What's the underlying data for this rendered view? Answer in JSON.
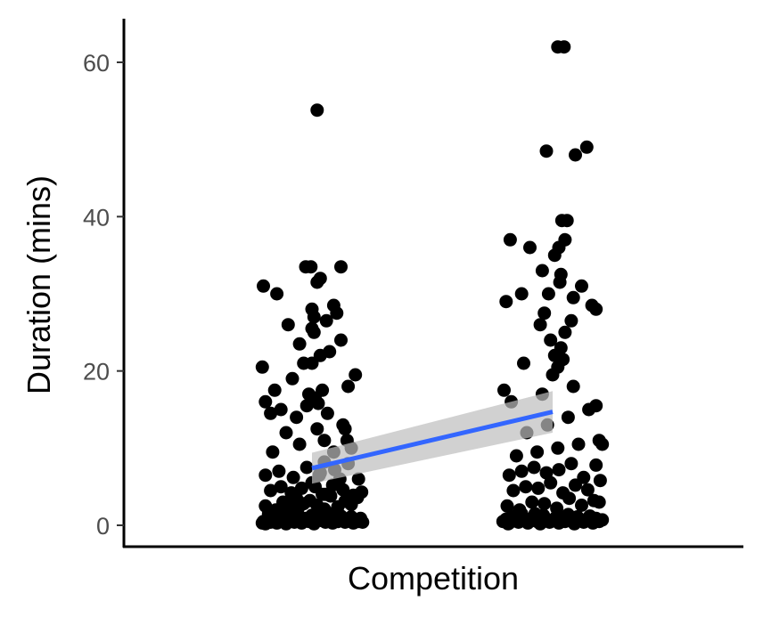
{
  "chart_data": {
    "type": "scatter",
    "title": "",
    "xlabel": "Competition",
    "ylabel": "Duration (mins)",
    "x_range": [
      0,
      1
    ],
    "ylim": [
      -2.5,
      65
    ],
    "yticks": [
      0,
      20,
      40,
      60
    ],
    "grid": false,
    "legend": "none",
    "colors": {
      "points": "#000000",
      "trend": "#3366ff",
      "ribbon": "#bebebe"
    },
    "series": [
      {
        "x": [
          0.02,
          0.03,
          0.05,
          0.07,
          0.08,
          0.1,
          0.12,
          0.14,
          0.16,
          0.18,
          0.2,
          0.23,
          0.25,
          0.27,
          0.3,
          0.33,
          0.36,
          0.4,
          0.44,
          0.47,
          0.5,
          0.52,
          0.55,
          0.58,
          0.6,
          0.63,
          0.66,
          0.68,
          0.7,
          0.72,
          0.75,
          0.78,
          0.8,
          0.82,
          0.85,
          0.88,
          0.9,
          0.92,
          0.95,
          0.97,
          0.99,
          0.05,
          0.15,
          0.22,
          0.28,
          0.35,
          0.42,
          0.48,
          0.55,
          0.62,
          0.68,
          0.75,
          0.82,
          0.88,
          0.94,
          0.1,
          0.2,
          0.3,
          0.4,
          0.5,
          0.6,
          0.7,
          0.8,
          0.9,
          0.98,
          0.05,
          0.18,
          0.32,
          0.45,
          0.58,
          0.72,
          0.85,
          0.95,
          0.12,
          0.38,
          0.62,
          0.88,
          0.25,
          0.55,
          0.8,
          0.35,
          0.65,
          0.45,
          0.56,
          0.2,
          0.53,
          0.47,
          0.6,
          0.31,
          0.85,
          0.92,
          0.02,
          0.5,
          0.58,
          0.67,
          0.38,
          0.78,
          0.27,
          0.64,
          0.52,
          0.74,
          0.52,
          0.5,
          0.71,
          0.03,
          0.55,
          0.58,
          0.78,
          0.16,
          0.44,
          0.05,
          0.82,
          0.84,
          0.49,
          0.55,
          0.5,
          0.62,
          0.71,
          0.77,
          0.1,
          0.14,
          0.33,
          0.38,
          0.53,
          0.57,
          0.63,
          0.68,
          0.42
        ],
        "y": [
          0.3,
          0.5,
          0.2,
          0.8,
          1.5,
          0.4,
          0.6,
          1.2,
          0.3,
          0.9,
          1.8,
          0.5,
          0.2,
          1.1,
          0.7,
          0.4,
          1.6,
          0.3,
          0.9,
          0.5,
          1.3,
          0.2,
          0.8,
          1.0,
          0.6,
          0.4,
          1.4,
          0.7,
          0.3,
          0.9,
          0.5,
          1.2,
          0.8,
          0.4,
          0.6,
          1.1,
          0.3,
          0.7,
          0.5,
          0.9,
          0.4,
          2.5,
          2.0,
          3.0,
          2.2,
          3.5,
          2.8,
          3.2,
          2.6,
          2.1,
          3.8,
          2.4,
          3.1,
          2.7,
          3.6,
          4.5,
          5.0,
          4.2,
          4.8,
          5.5,
          4.0,
          5.2,
          4.6,
          3.9,
          4.3,
          6.5,
          7.0,
          6.2,
          7.5,
          6.8,
          7.2,
          8.0,
          6.0,
          9.5,
          10.5,
          11.0,
          10.0,
          12.0,
          12.5,
          13.0,
          14.0,
          14.5,
          15.5,
          15.8,
          15.0,
          16.5,
          17.0,
          17.5,
          19.0,
          18.0,
          19.5,
          20.5,
          21.0,
          22.0,
          22.5,
          23.5,
          24.0,
          26.0,
          26.5,
          27.0,
          27.5,
          25.0,
          28.0,
          28.5,
          31.0,
          31.5,
          32.0,
          33.5,
          30.0,
          33.5,
          16.0,
          12.5,
          11.0,
          33.5,
          53.8,
          25.5,
          8.2,
          9.5,
          6.0,
          14.5,
          17.5,
          3.0,
          2.5,
          5.0,
          6.5,
          4.0,
          1.5,
          21.0
        ],
        "name": ""
      },
      {
        "x": [
          0.02,
          0.05,
          0.08,
          0.11,
          0.14,
          0.17,
          0.2,
          0.23,
          0.26,
          0.29,
          0.32,
          0.35,
          0.38,
          0.41,
          0.44,
          0.47,
          0.5,
          0.53,
          0.56,
          0.59,
          0.62,
          0.65,
          0.68,
          0.71,
          0.74,
          0.77,
          0.8,
          0.83,
          0.86,
          0.89,
          0.92,
          0.95,
          0.98,
          0.06,
          0.18,
          0.3,
          0.42,
          0.54,
          0.66,
          0.78,
          0.9,
          0.12,
          0.24,
          0.36,
          0.48,
          0.6,
          0.72,
          0.84,
          0.96,
          0.08,
          0.2,
          0.32,
          0.44,
          0.56,
          0.68,
          0.8,
          0.92,
          0.15,
          0.35,
          0.55,
          0.75,
          0.95,
          0.25,
          0.45,
          0.65,
          0.85,
          0.1,
          0.4,
          0.7,
          0.5,
          0.55,
          0.6,
          0.52,
          0.58,
          0.48,
          0.03,
          0.22,
          0.62,
          0.38,
          0.92,
          0.88,
          0.42,
          0.7,
          0.78,
          0.57,
          0.46,
          0.58,
          0.98,
          0.52,
          0.92,
          0.56,
          0.62,
          0.28,
          0.2,
          0.05,
          0.09,
          0.4,
          0.59,
          0.64,
          0.72,
          0.83,
          0.44,
          0.55,
          0.61,
          0.95,
          0.33,
          0.07,
          0.68
        ],
        "y": [
          0.5,
          0.8,
          0.3,
          1.2,
          0.6,
          0.4,
          1.5,
          0.9,
          0.3,
          0.7,
          1.1,
          0.5,
          0.2,
          1.3,
          0.8,
          0.4,
          0.6,
          1.0,
          0.3,
          0.9,
          0.5,
          1.4,
          0.7,
          0.2,
          1.1,
          0.6,
          0.4,
          0.8,
          1.2,
          0.3,
          0.9,
          0.5,
          0.7,
          2.5,
          2.0,
          3.0,
          2.8,
          2.2,
          3.5,
          2.6,
          3.2,
          4.5,
          5.0,
          4.8,
          5.5,
          4.2,
          5.2,
          4.6,
          5.8,
          6.5,
          7.0,
          7.5,
          6.8,
          7.2,
          8.0,
          6.2,
          7.8,
          9.0,
          9.5,
          10.0,
          10.5,
          11.0,
          12.0,
          13.0,
          14.0,
          15.0,
          16.0,
          17.0,
          18.0,
          19.5,
          20.5,
          21.5,
          22.0,
          23.0,
          24.0,
          17.5,
          21.0,
          25.0,
          26.0,
          28.0,
          28.5,
          27.5,
          29.5,
          31.0,
          31.5,
          30.0,
          32.5,
          10.5,
          35.0,
          15.5,
          36.0,
          37.0,
          36.0,
          30.0,
          29.0,
          37.0,
          33.0,
          39.5,
          39.5,
          48.0,
          49.0,
          48.5,
          62.0,
          62.0,
          3.0,
          1.5,
          0.2,
          26.5
        ],
        "name": ""
      }
    ],
    "trend": {
      "x": [
        0.0,
        1.0
      ],
      "y": [
        7.4,
        14.7
      ],
      "ci_lower": [
        5.4,
        12.0
      ],
      "ci_upper": [
        9.4,
        17.4
      ]
    }
  }
}
